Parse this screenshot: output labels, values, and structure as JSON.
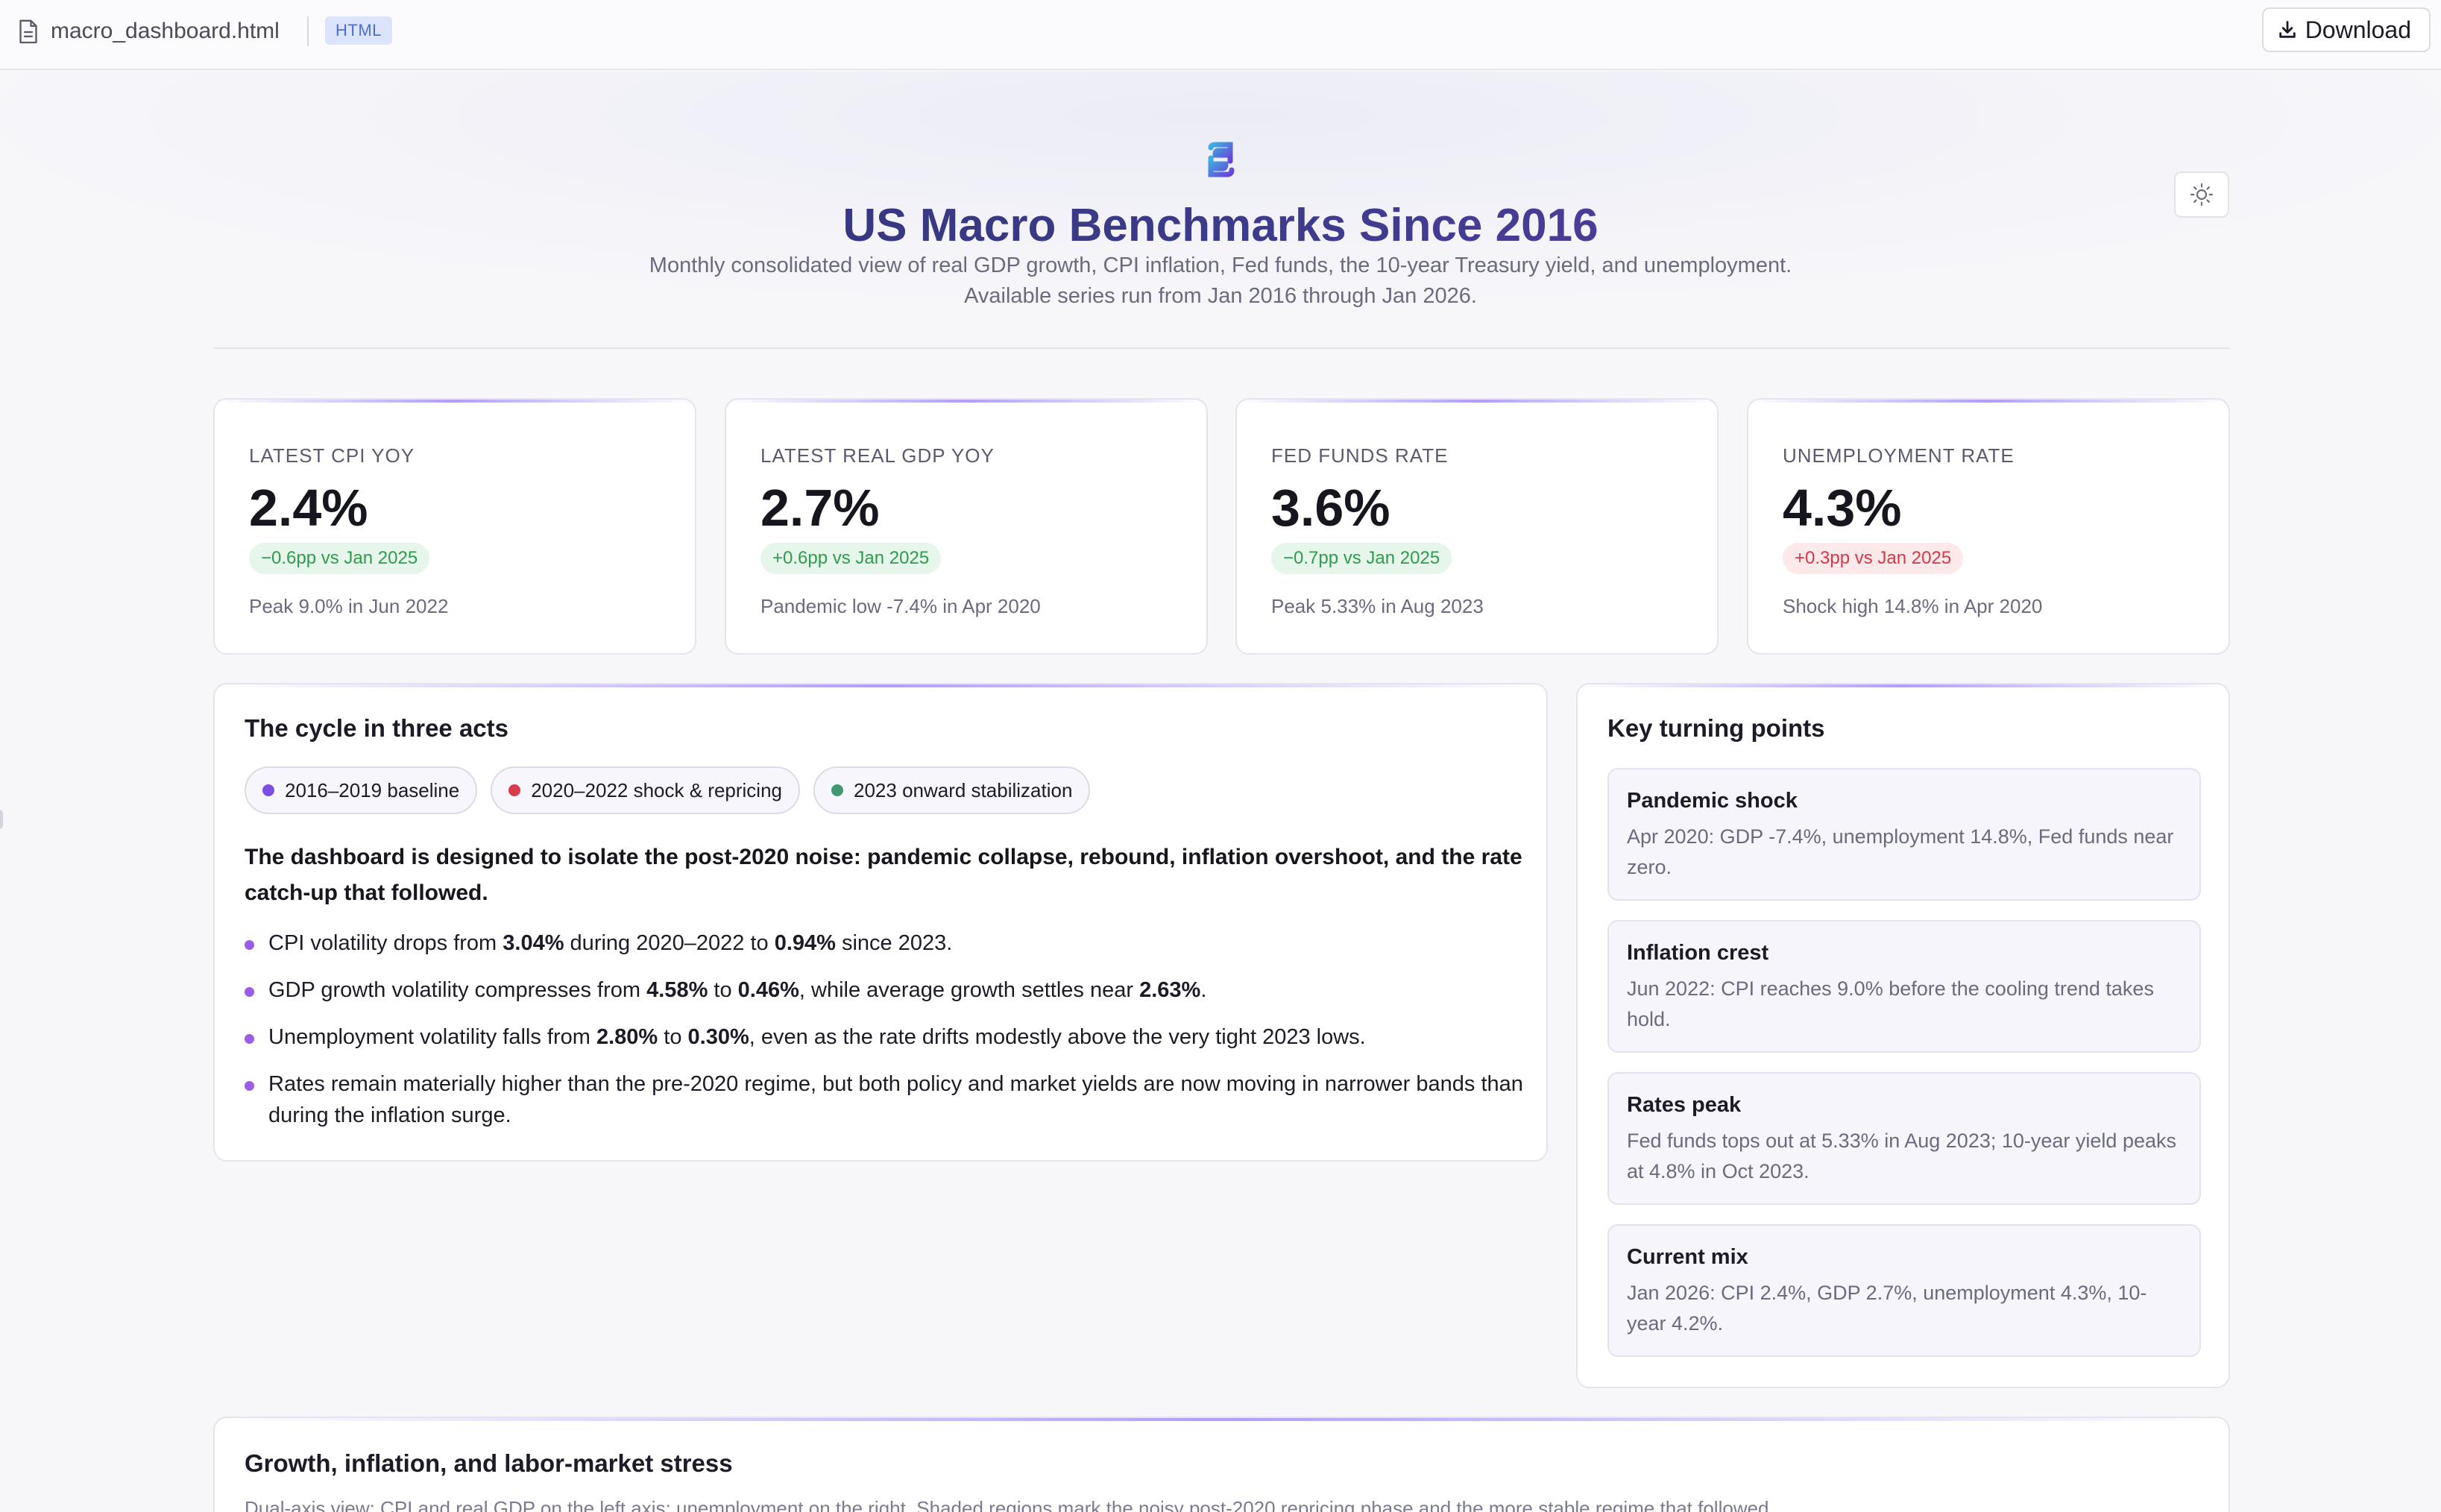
{
  "topbar": {
    "file_name": "macro_dashboard.html",
    "file_type_badge": "HTML",
    "download_label": "Download"
  },
  "header": {
    "title": "US Macro Benchmarks Since 2016",
    "subtitle_line1": "Monthly consolidated view of real GDP growth, CPI inflation, Fed funds, the 10-year Treasury yield, and unemployment.",
    "subtitle_line2": "Available series run from Jan 2016 through Jan 2026."
  },
  "kpis": [
    {
      "label": "LATEST CPI YOY",
      "value": "2.4%",
      "delta": "−0.6pp vs Jan 2025",
      "tone": "good",
      "note": "Peak 9.0% in Jun 2022"
    },
    {
      "label": "LATEST REAL GDP YOY",
      "value": "2.7%",
      "delta": "+0.6pp vs Jan 2025",
      "tone": "good",
      "note": "Pandemic low -7.4% in Apr 2020"
    },
    {
      "label": "FED FUNDS RATE",
      "value": "3.6%",
      "delta": "−0.7pp vs Jan 2025",
      "tone": "good",
      "note": "Peak 5.33% in Aug 2023"
    },
    {
      "label": "UNEMPLOYMENT RATE",
      "value": "4.3%",
      "delta": "+0.3pp vs Jan 2025",
      "tone": "bad",
      "note": "Shock high 14.8% in Apr 2020"
    }
  ],
  "narrative": {
    "title": "The cycle in three acts",
    "pills": [
      {
        "label": "2016–2019 baseline",
        "color": "#7b4fe0"
      },
      {
        "label": "2020–2022 shock & repricing",
        "color": "#d83a4e"
      },
      {
        "label": "2023 onward stabilization",
        "color": "#3f9a72"
      }
    ],
    "lead": "The dashboard is designed to isolate the post-2020 noise: pandemic collapse, rebound, inflation overshoot, and the rate catch-up that followed.",
    "bullets": [
      {
        "p1": "CPI volatility drops from ",
        "b1": "3.04%",
        "p2": " during 2020–2022 to ",
        "b2": "0.94%",
        "p3": " since 2023.",
        "b3": "",
        "p4": ""
      },
      {
        "p1": "GDP growth volatility compresses from ",
        "b1": "4.58%",
        "p2": " to ",
        "b2": "0.46%",
        "p3": ", while average growth settles near ",
        "b3": "2.63%",
        "p4": "."
      },
      {
        "p1": "Unemployment volatility falls from ",
        "b1": "2.80%",
        "p2": " to ",
        "b2": "0.30%",
        "p3": ", even as the rate drifts modestly above the very tight 2023 lows.",
        "b3": "",
        "p4": ""
      },
      {
        "p1": "Rates remain materially higher than the pre-2020 regime, but both policy and market yields are now moving in narrower bands than during the inflation surge.",
        "b1": "",
        "p2": "",
        "b2": "",
        "p3": "",
        "b3": "",
        "p4": ""
      }
    ]
  },
  "turning_points": {
    "title": "Key turning points",
    "items": [
      {
        "title": "Pandemic shock",
        "body": "Apr 2020: GDP -7.4%, unemployment 14.8%, Fed funds near zero."
      },
      {
        "title": "Inflation crest",
        "body": "Jun 2022: CPI reaches 9.0% before the cooling trend takes hold."
      },
      {
        "title": "Rates peak",
        "body": "Fed funds tops out at 5.33% in Aug 2023; 10-year yield peaks at 4.8% in Oct 2023."
      },
      {
        "title": "Current mix",
        "body": "Jan 2026: CPI 2.4%, GDP 2.7%, unemployment 4.3%, 10-year 4.2%."
      }
    ]
  },
  "chart_section": {
    "title": "Growth, inflation, and labor-market stress",
    "subtitle": "Dual-axis view: CPI and real GDP on the left axis; unemployment on the right. Shaded regions mark the noisy post-2020 repricing phase and the more stable regime that followed."
  },
  "icons": {
    "file": "file-icon",
    "download": "download-icon",
    "logo": "logo-icon",
    "theme": "sun-icon"
  },
  "colors": {
    "accent_purple": "#7b4fe0",
    "good_text": "#2f9b4e",
    "good_bg": "#e6f6ea",
    "bad_text": "#d23a4b",
    "bad_bg": "#fde8ea"
  }
}
